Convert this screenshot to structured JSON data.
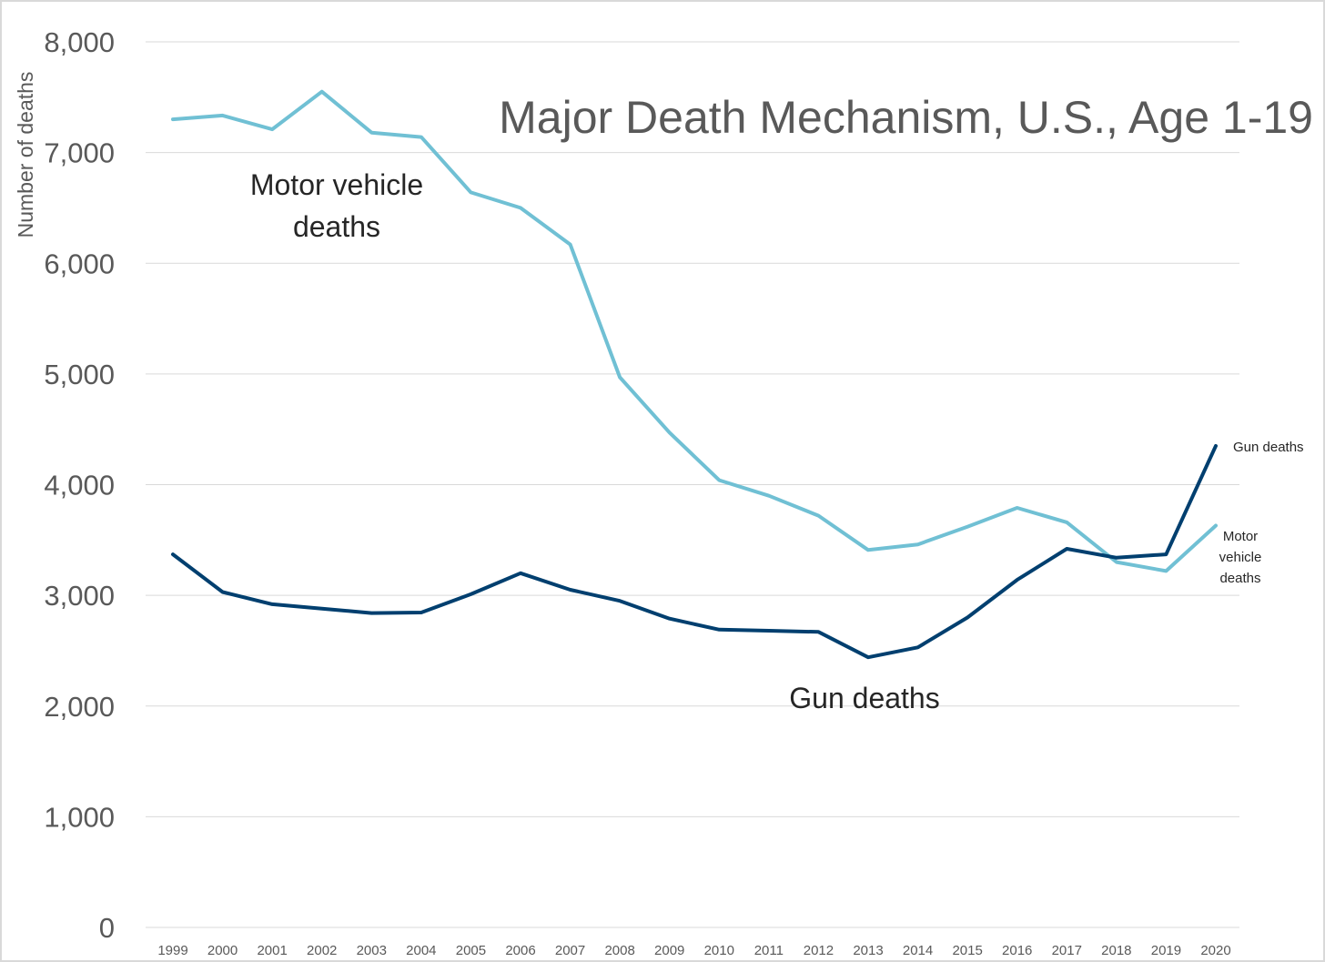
{
  "chart_data": {
    "type": "line",
    "title": "Major Death Mechanism, U.S., Age 1-19",
    "xlabel": "",
    "ylabel": "Number of deaths",
    "ylim": [
      0,
      8000
    ],
    "yticks": [
      0,
      1000,
      2000,
      3000,
      4000,
      5000,
      6000,
      7000,
      8000
    ],
    "ytick_labels": [
      "0",
      "1,000",
      "2,000",
      "3,000",
      "4,000",
      "5,000",
      "6,000",
      "7,000",
      "8,000"
    ],
    "categories": [
      "1999",
      "2000",
      "2001",
      "2002",
      "2003",
      "2004",
      "2005",
      "2006",
      "2007",
      "2008",
      "2009",
      "2010",
      "2011",
      "2012",
      "2013",
      "2014",
      "2015",
      "2016",
      "2017",
      "2018",
      "2019",
      "2020"
    ],
    "grid": "horizontal",
    "legend": "none",
    "series": [
      {
        "name": "Motor vehicle deaths",
        "color": "#70c0d4",
        "values": [
          7300,
          7335,
          7210,
          7550,
          7180,
          7140,
          6640,
          6500,
          6170,
          4970,
          4470,
          4040,
          3900,
          3720,
          3410,
          3460,
          3620,
          3790,
          3660,
          3300,
          3220,
          3630
        ]
      },
      {
        "name": "Gun deaths",
        "color": "#003f6f",
        "values": [
          3370,
          3030,
          2920,
          2880,
          2840,
          2845,
          3010,
          3200,
          3050,
          2950,
          2790,
          2690,
          2680,
          2670,
          2440,
          2530,
          2800,
          3140,
          3420,
          3340,
          3370,
          4350
        ]
      }
    ],
    "annotations": {
      "mv_main": [
        "Motor vehicle",
        "deaths"
      ],
      "gun_main": "Gun deaths",
      "gun_end": "Gun deaths",
      "mv_end": [
        "Motor",
        "vehicle",
        "deaths"
      ]
    }
  }
}
